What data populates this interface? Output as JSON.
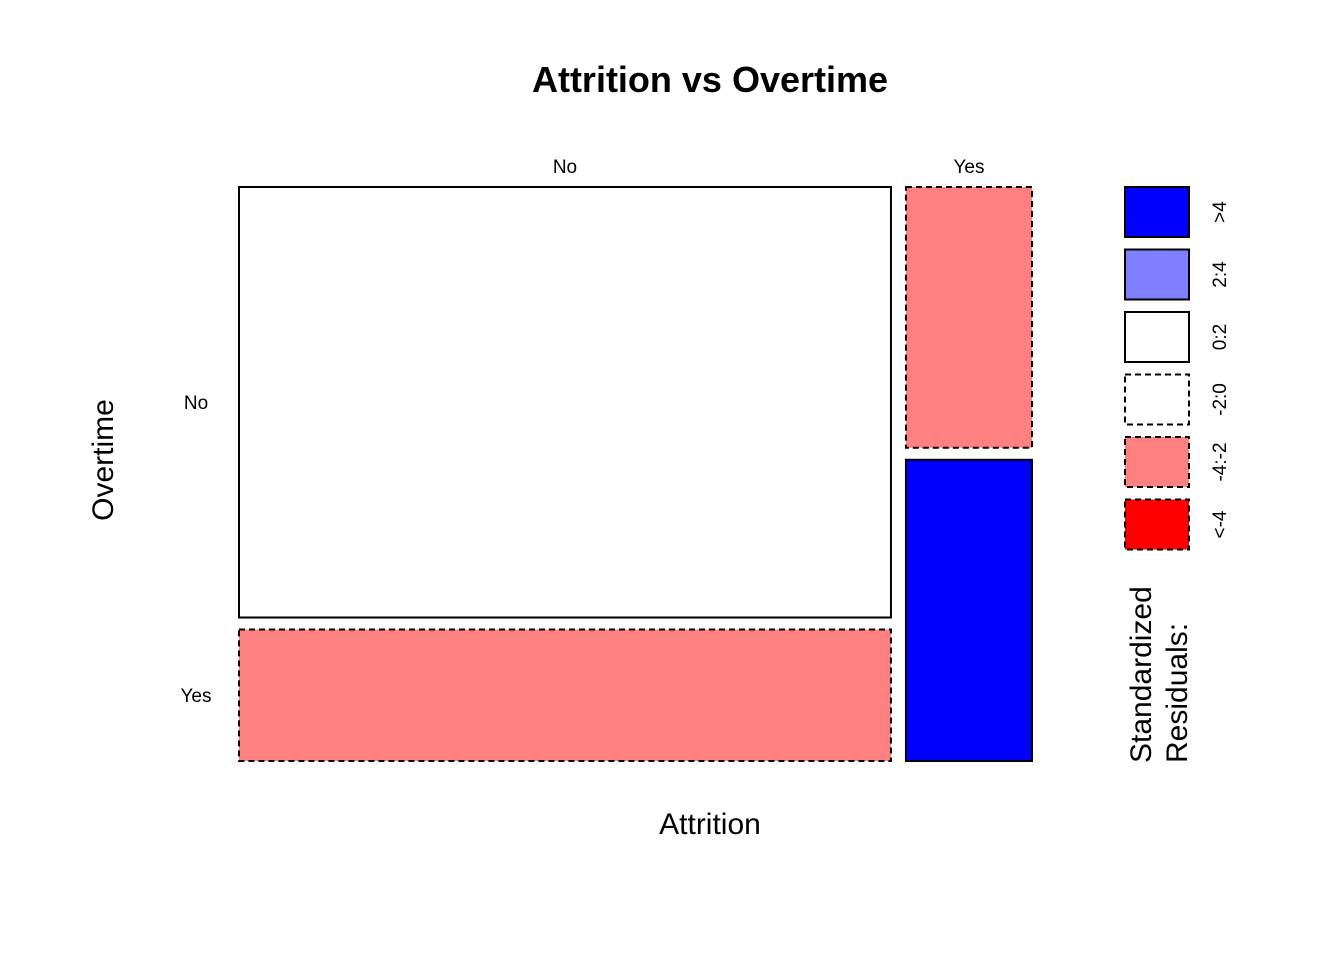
{
  "chart_data": {
    "type": "mosaic",
    "title": "Attrition vs Overtime",
    "xlabel": "Attrition",
    "ylabel": "Overtime",
    "x_categories": [
      "No",
      "Yes"
    ],
    "y_categories": [
      "No",
      "Yes"
    ],
    "cells": [
      {
        "attrition": "No",
        "overtime": "No",
        "x_share": 0.838,
        "y_share": 0.766,
        "residual_class": "0:2"
      },
      {
        "attrition": "No",
        "overtime": "Yes",
        "x_share": 0.838,
        "y_share": 0.234,
        "residual_class": "-4:-2"
      },
      {
        "attrition": "Yes",
        "overtime": "No",
        "x_share": 0.162,
        "y_share": 0.464,
        "residual_class": "-4:-2"
      },
      {
        "attrition": "Yes",
        "overtime": "Yes",
        "x_share": 0.162,
        "y_share": 0.536,
        "residual_class": ">4"
      }
    ],
    "legend": {
      "title_lines": [
        "Standardized",
        "Residuals:"
      ],
      "placement": "right",
      "items": [
        {
          "label": ">4",
          "color": "#0000FF",
          "dashed": false
        },
        {
          "label": "2:4",
          "color": "#8080FF",
          "dashed": false
        },
        {
          "label": "0:2",
          "color": "#FFFFFF",
          "dashed": false
        },
        {
          "label": "-2:0",
          "color": "#FFFFFF",
          "dashed": true
        },
        {
          "label": "-4:-2",
          "color": "#FF8080",
          "dashed": true
        },
        {
          "label": "<-4",
          "color": "#FF0000",
          "dashed": true
        }
      ]
    }
  }
}
